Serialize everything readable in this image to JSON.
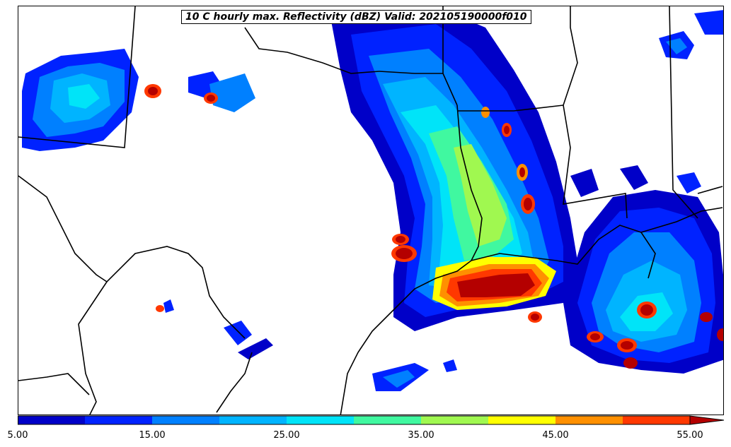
{
  "map": {
    "title": "10 C hourly max. Reflectivity (dBZ) Valid: 202105190000f010"
  },
  "colorbar": {
    "tick_labels": [
      "5.00",
      "15.00",
      "25.00",
      "35.00",
      "45.00",
      "55.00"
    ],
    "levels": [
      5,
      10,
      15,
      20,
      25,
      30,
      35,
      40,
      45,
      50,
      55
    ],
    "colors": [
      "#0000c8",
      "#0022ff",
      "#0080ff",
      "#00b4ff",
      "#00e4f8",
      "#40f8a0",
      "#a0f850",
      "#ffff00",
      "#ff9000",
      "#ff3800",
      "#b40000"
    ],
    "extend": "max"
  }
}
